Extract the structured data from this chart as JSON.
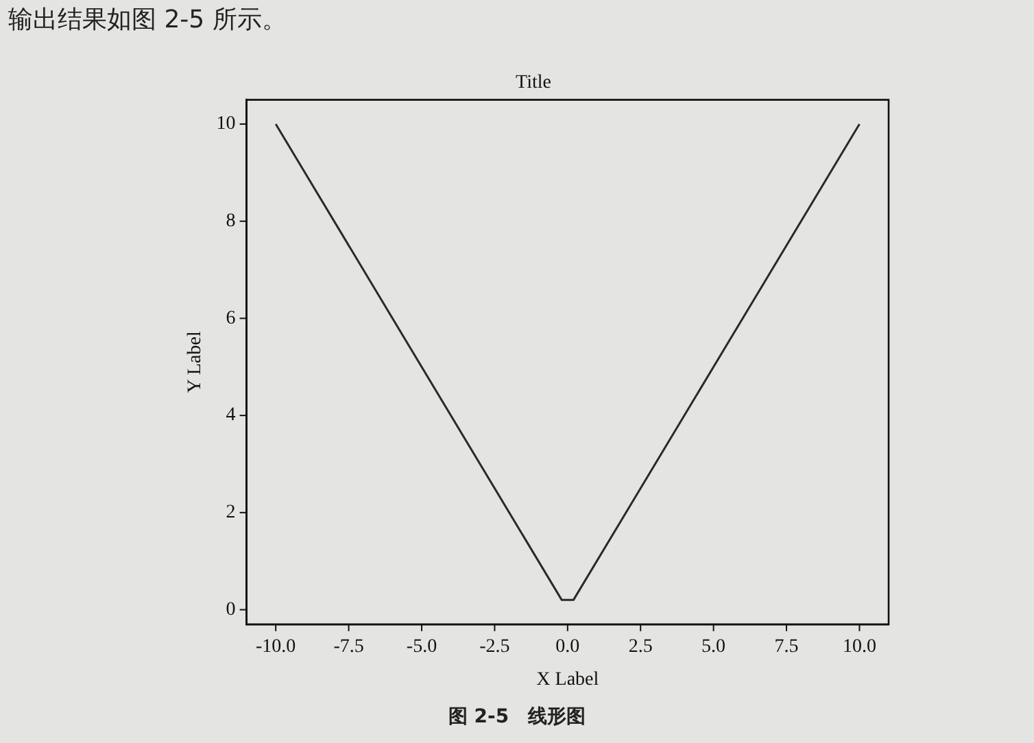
{
  "chart_data": {
    "type": "line",
    "title": "Title",
    "xlabel": "X Label",
    "ylabel": "Y Label",
    "annotations": [
      "输出结果如图 2-5 所示。",
      "图 2-5　线形图"
    ],
    "x": [
      -10,
      -0.2,
      0.2,
      10
    ],
    "series": [
      {
        "color": "#2a2a2a",
        "values": [
          10,
          0.2,
          0.2,
          10
        ]
      }
    ],
    "xlim": [
      -11,
      11
    ],
    "xticks": [
      {
        "value": -10,
        "label": "-10.0"
      },
      {
        "value": -7.5,
        "label": "-7.5"
      },
      {
        "value": -5,
        "label": "-5.0"
      },
      {
        "value": -2.5,
        "label": "-2.5"
      },
      {
        "value": 0,
        "label": "0.0"
      },
      {
        "value": 2.5,
        "label": "2.5"
      },
      {
        "value": 5,
        "label": "5.0"
      },
      {
        "value": 7.5,
        "label": "7.5"
      },
      {
        "value": 10,
        "label": "10.0"
      }
    ],
    "ylim": [
      -0.3,
      10.5
    ],
    "yticks": [
      0,
      2,
      4,
      6,
      8,
      10
    ],
    "grid": false,
    "legend": false,
    "marker": "none",
    "line_style": "solid"
  }
}
